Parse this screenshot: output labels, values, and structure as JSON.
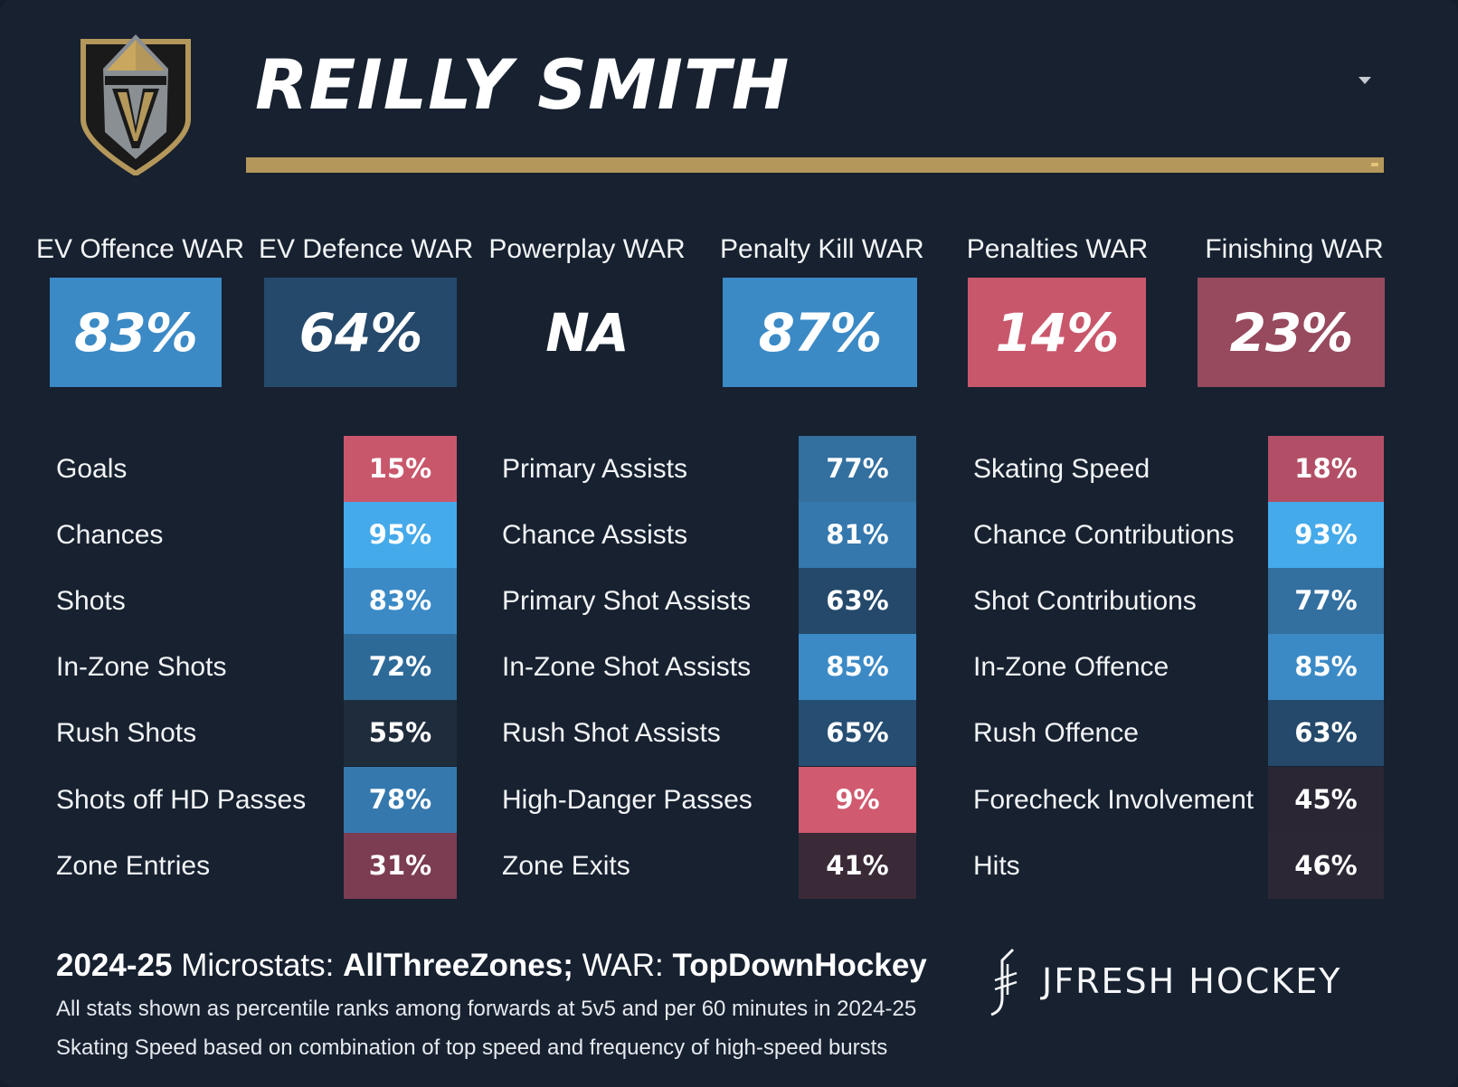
{
  "player": {
    "name": "REILLY SMITH"
  },
  "colors": {
    "background": "#172130",
    "gold_accent": "#b4975a",
    "high_blue": "#45aaea",
    "mid_blue": "#3b8ac6",
    "dark_blue": "#25496b",
    "neutral": "#1f2c3c",
    "low_red": "#c9576c",
    "dark_red": "#7c3c51"
  },
  "war": [
    {
      "label": "EV Offence WAR",
      "value": "83%"
    },
    {
      "label": "EV Defence WAR",
      "value": "64%"
    },
    {
      "label": "Powerplay WAR",
      "value": "NA"
    },
    {
      "label": "Penalty Kill WAR",
      "value": "87%"
    },
    {
      "label": "Penalties WAR",
      "value": "14%"
    },
    {
      "label": "Finishing WAR",
      "value": "23%"
    }
  ],
  "columns": [
    {
      "rows": [
        {
          "label": "Goals",
          "value": "15%"
        },
        {
          "label": "Chances",
          "value": "95%"
        },
        {
          "label": "Shots",
          "value": "83%"
        },
        {
          "label": "In-Zone Shots",
          "value": "72%"
        },
        {
          "label": "Rush Shots",
          "value": "55%"
        },
        {
          "label": "Shots off HD Passes",
          "value": "78%"
        },
        {
          "label": "Zone Entries",
          "value": "31%"
        }
      ]
    },
    {
      "rows": [
        {
          "label": "Primary Assists",
          "value": "77%"
        },
        {
          "label": "Chance Assists",
          "value": "81%"
        },
        {
          "label": "Primary Shot Assists",
          "value": "63%"
        },
        {
          "label": "In-Zone Shot Assists",
          "value": "85%"
        },
        {
          "label": "Rush Shot Assists",
          "value": "65%"
        },
        {
          "label": "High-Danger Passes",
          "value": "9%"
        },
        {
          "label": "Zone Exits",
          "value": "41%"
        }
      ]
    },
    {
      "rows": [
        {
          "label": "Skating Speed",
          "value": "18%"
        },
        {
          "label": "Chance Contributions",
          "value": "93%"
        },
        {
          "label": "Shot Contributions",
          "value": "77%"
        },
        {
          "label": "In-Zone Offence",
          "value": "85%"
        },
        {
          "label": "Rush Offence",
          "value": "63%"
        },
        {
          "label": "Forecheck Involvement",
          "value": "45%"
        },
        {
          "label": "Hits",
          "value": "46%"
        }
      ]
    }
  ],
  "footer": {
    "season": "2024-25",
    "microstats_label": "Microstats:",
    "microstats_source": "AllThreeZones;",
    "war_label": "WAR:",
    "war_source": "TopDownHockey",
    "note1": "All stats shown as percentile ranks among forwards at 5v5 and per 60 minutes in 2024-25",
    "note2": "Skating Speed based on combination of top speed and frequency of high-speed bursts"
  },
  "brand": {
    "name": "JFRESH HOCKEY",
    "icon": "jfresh-logo-icon"
  },
  "team_logo": {
    "icon": "vegas-golden-knights-helmet-icon"
  },
  "dropdown": {
    "icon": "chevron-down-icon"
  }
}
